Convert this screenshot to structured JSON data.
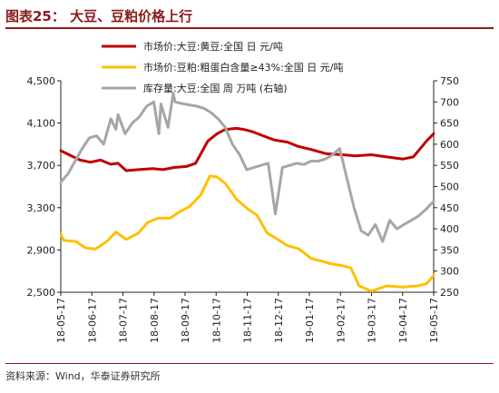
{
  "header": {
    "title": "图表25：  大豆、豆粕价格上行"
  },
  "footer": {
    "source": "资料来源：Wind，华泰证券研究所"
  },
  "colors": {
    "title": "#8b1a1a",
    "series1": "#c00000",
    "series2": "#ffc000",
    "series3": "#a6a6a6"
  },
  "chart_data": {
    "type": "line",
    "title": "",
    "x_tick_labels": [
      "18-05-17",
      "18-06-17",
      "18-07-17",
      "18-08-17",
      "18-09-17",
      "18-10-17",
      "18-11-17",
      "18-12-17",
      "19-01-17",
      "19-02-17",
      "19-03-17",
      "19-04-17",
      "19-05-17"
    ],
    "y_left": {
      "range": [
        2500,
        4500
      ],
      "ticks": [
        "2,500",
        "2,900",
        "3,300",
        "3,700",
        "4,100",
        "4,500"
      ]
    },
    "y_right": {
      "range": [
        250,
        750
      ],
      "ticks": [
        "250",
        "300",
        "350",
        "400",
        "450",
        "500",
        "550",
        "600",
        "650",
        "700",
        "750"
      ]
    },
    "grid": false,
    "legend_position": "top-right",
    "series": [
      {
        "name": "市场价:大豆:黄豆:全国 日 元/吨",
        "axis": "left",
        "x": [
          "2018-05-17",
          "2018-05-25",
          "2018-06-05",
          "2018-06-15",
          "2018-06-25",
          "2018-07-05",
          "2018-07-12",
          "2018-07-20",
          "2018-08-01",
          "2018-08-15",
          "2018-08-25",
          "2018-09-05",
          "2018-09-17",
          "2018-09-26",
          "2018-10-08",
          "2018-10-17",
          "2018-10-25",
          "2018-11-05",
          "2018-11-12",
          "2018-11-20",
          "2018-12-01",
          "2018-12-12",
          "2018-12-25",
          "2019-01-04",
          "2019-01-17",
          "2019-02-01",
          "2019-02-17",
          "2019-03-01",
          "2019-03-17",
          "2019-04-01",
          "2019-04-17",
          "2019-04-27",
          "2019-05-10",
          "2019-05-17"
        ],
        "values": [
          3840,
          3800,
          3750,
          3730,
          3750,
          3710,
          3720,
          3650,
          3660,
          3670,
          3660,
          3680,
          3690,
          3720,
          3930,
          4000,
          4040,
          4050,
          4040,
          4020,
          3980,
          3940,
          3920,
          3880,
          3850,
          3810,
          3800,
          3790,
          3800,
          3780,
          3760,
          3780,
          3930,
          4000
        ]
      },
      {
        "name": "市场价:豆粕:粗蛋白含量≥43%:全国 日 元/吨",
        "axis": "left",
        "x": [
          "2018-05-17",
          "2018-05-20",
          "2018-06-01",
          "2018-06-10",
          "2018-06-20",
          "2018-07-01",
          "2018-07-10",
          "2018-07-20",
          "2018-08-01",
          "2018-08-10",
          "2018-08-20",
          "2018-09-01",
          "2018-09-10",
          "2018-09-20",
          "2018-10-01",
          "2018-10-10",
          "2018-10-17",
          "2018-10-25",
          "2018-11-05",
          "2018-11-17",
          "2018-11-25",
          "2018-12-05",
          "2018-12-17",
          "2018-12-25",
          "2019-01-05",
          "2019-01-17",
          "2019-01-25",
          "2019-02-05",
          "2019-02-17",
          "2019-02-25",
          "2019-03-05",
          "2019-03-17",
          "2019-04-01",
          "2019-04-17",
          "2019-05-01",
          "2019-05-10",
          "2019-05-17"
        ],
        "values": [
          3050,
          2990,
          2980,
          2920,
          2910,
          2980,
          3070,
          3000,
          3060,
          3160,
          3200,
          3200,
          3260,
          3310,
          3420,
          3600,
          3590,
          3530,
          3380,
          3280,
          3230,
          3060,
          2990,
          2940,
          2910,
          2820,
          2800,
          2770,
          2750,
          2730,
          2560,
          2510,
          2560,
          2550,
          2560,
          2580,
          2660
        ]
      },
      {
        "name": "库存量:大豆:全国 周 万吨 (右轴)",
        "axis": "right",
        "x": [
          "2018-05-17",
          "2018-05-24",
          "2018-05-31",
          "2018-06-07",
          "2018-06-14",
          "2018-06-21",
          "2018-06-28",
          "2018-07-05",
          "2018-07-10",
          "2018-07-12",
          "2018-07-19",
          "2018-07-26",
          "2018-08-02",
          "2018-08-09",
          "2018-08-16",
          "2018-08-21",
          "2018-08-23",
          "2018-08-30",
          "2018-09-04",
          "2018-09-06",
          "2018-09-13",
          "2018-09-20",
          "2018-09-27",
          "2018-10-04",
          "2018-10-11",
          "2018-10-18",
          "2018-10-25",
          "2018-11-01",
          "2018-11-08",
          "2018-11-15",
          "2018-11-22",
          "2018-11-29",
          "2018-12-06",
          "2018-12-13",
          "2018-12-20",
          "2018-12-27",
          "2019-01-03",
          "2019-01-10",
          "2019-01-17",
          "2019-01-24",
          "2019-01-31",
          "2019-02-07",
          "2019-02-14",
          "2019-02-21",
          "2019-02-28",
          "2019-03-07",
          "2019-03-14",
          "2019-03-21",
          "2019-03-28",
          "2019-04-04",
          "2019-04-11",
          "2019-04-18",
          "2019-04-25",
          "2019-05-02",
          "2019-05-09",
          "2019-05-17"
        ],
        "values": [
          510,
          530,
          560,
          590,
          615,
          620,
          600,
          660,
          635,
          670,
          625,
          650,
          665,
          690,
          700,
          625,
          695,
          640,
          720,
          700,
          696,
          693,
          690,
          685,
          675,
          660,
          640,
          600,
          575,
          540,
          545,
          550,
          555,
          435,
          545,
          550,
          555,
          552,
          560,
          560,
          565,
          575,
          590,
          520,
          450,
          395,
          385,
          410,
          370,
          420,
          400,
          410,
          420,
          430,
          445,
          465
        ]
      }
    ]
  }
}
